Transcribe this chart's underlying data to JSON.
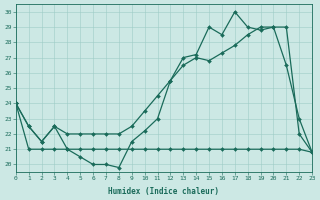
{
  "xlabel": "Humidex (Indice chaleur)",
  "bg_color": "#cce8e4",
  "line_color": "#1a6b5a",
  "xlim": [
    0,
    23
  ],
  "ylim": [
    19.5,
    30.5
  ],
  "xticks": [
    0,
    1,
    2,
    3,
    4,
    5,
    6,
    7,
    8,
    9,
    10,
    11,
    12,
    13,
    14,
    15,
    16,
    17,
    18,
    19,
    20,
    21,
    22,
    23
  ],
  "yticks": [
    20,
    21,
    22,
    23,
    24,
    25,
    26,
    27,
    28,
    29,
    30
  ],
  "max_vals": [
    24,
    22.5,
    21.5,
    22.5,
    21.0,
    20.5,
    20.0,
    20.0,
    19.8,
    21.5,
    22.2,
    23.0,
    25.5,
    27.0,
    27.2,
    29.0,
    28.5,
    30.0,
    29.0,
    28.8,
    29.0,
    26.5,
    23.0,
    20.8
  ],
  "mid_vals": [
    24,
    22.5,
    21.5,
    22.5,
    22.0,
    22.0,
    22.0,
    22.0,
    22.0,
    22.5,
    23.5,
    24.5,
    25.5,
    26.5,
    27.0,
    26.8,
    27.3,
    27.8,
    28.5,
    29.0,
    29.0,
    29.0,
    22.0,
    20.8
  ],
  "min_vals": [
    24,
    21.0,
    21.0,
    21.0,
    21.0,
    21.0,
    21.0,
    21.0,
    21.0,
    21.0,
    21.0,
    21.0,
    21.0,
    21.0,
    21.0,
    21.0,
    21.0,
    21.0,
    21.0,
    21.0,
    21.0,
    21.0,
    21.0,
    20.8
  ]
}
